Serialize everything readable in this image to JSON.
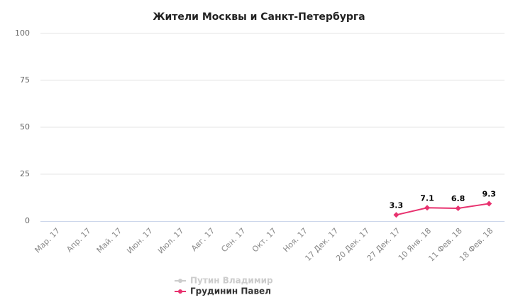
{
  "chart_data": {
    "type": "line",
    "title": "Жители Москвы и Санкт-Петербурга",
    "categories": [
      "Мар. 17",
      "Апр. 17",
      "Май. 17",
      "Июн. 17",
      "Июл. 17",
      "Авг. 17",
      "Сен. 17",
      "Окт. 17",
      "Ноя. 17",
      "17 Дек. 17",
      "20 Дек. 17",
      "27 Дек. 17",
      "10 Янв. 18",
      "11 Фев. 18",
      "18 Фев. 18"
    ],
    "series": [
      {
        "name": "Путин Владимир",
        "color": "#cccccc",
        "visible": false,
        "values": [
          null,
          null,
          null,
          null,
          null,
          null,
          null,
          null,
          null,
          null,
          null,
          null,
          null,
          null,
          null
        ]
      },
      {
        "name": "Грудинин Павел",
        "color": "#e8326f",
        "visible": true,
        "values": [
          null,
          null,
          null,
          null,
          null,
          null,
          null,
          null,
          null,
          null,
          null,
          3.3,
          7.1,
          6.8,
          9.3
        ]
      }
    ],
    "ylim": [
      0,
      100
    ],
    "yticks": [
      0,
      25,
      50,
      75,
      100
    ],
    "grid": true,
    "data_labels": true
  }
}
